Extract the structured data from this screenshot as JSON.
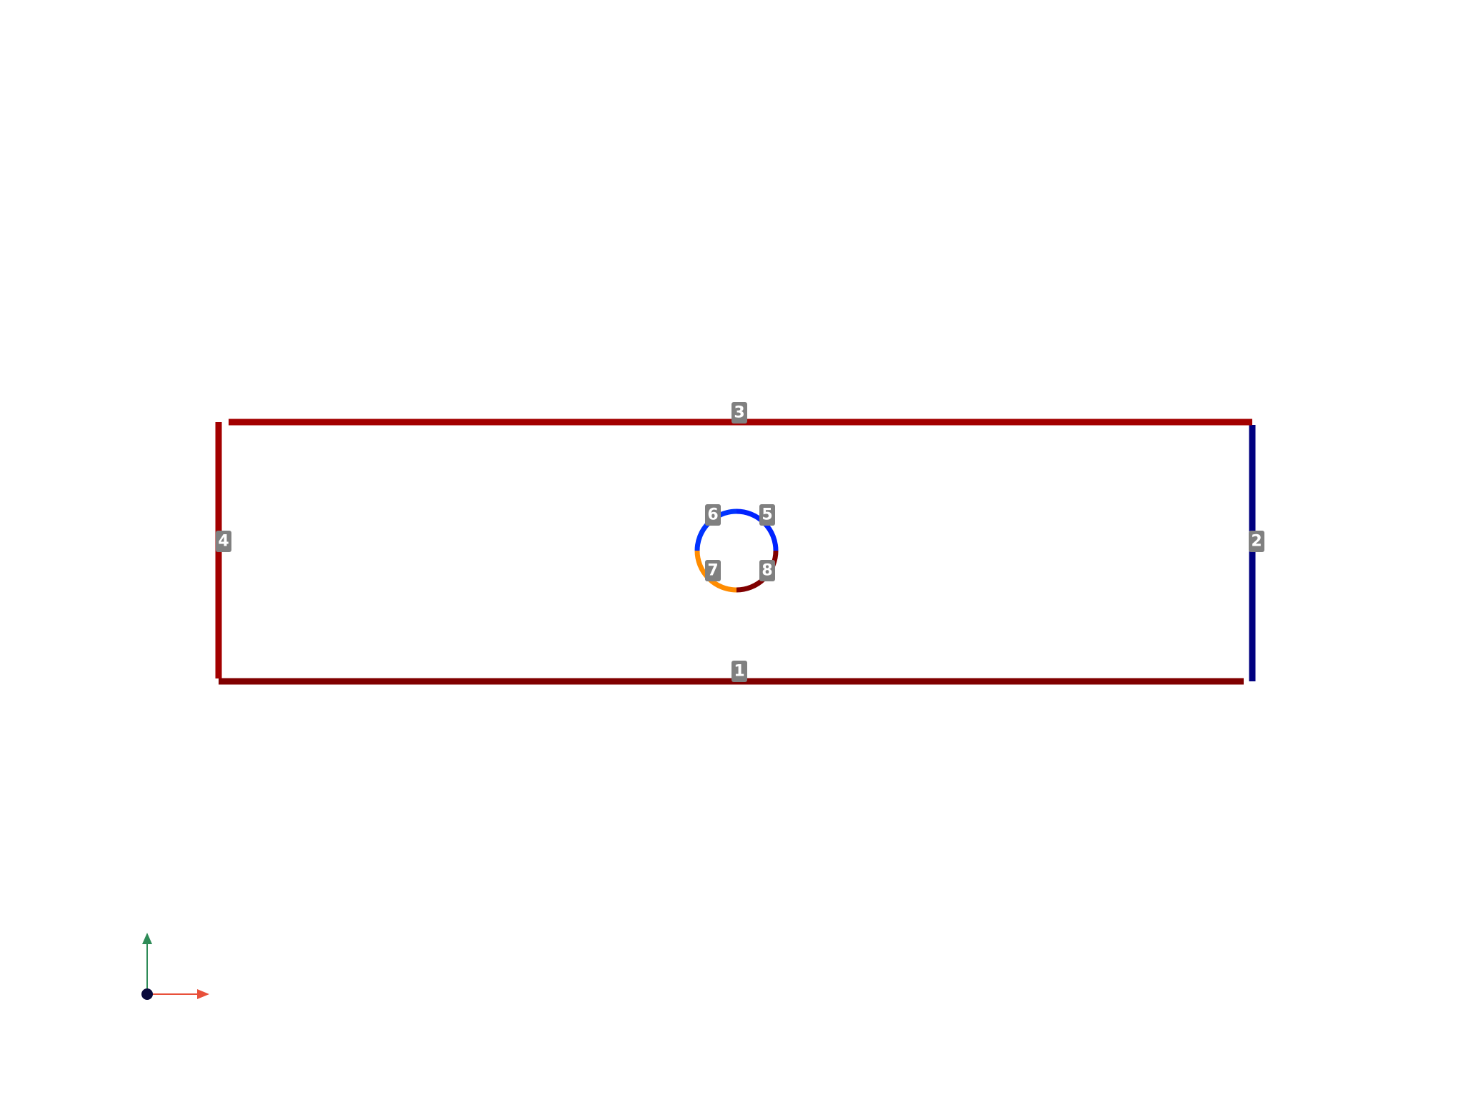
{
  "edges": [
    {
      "id": "1",
      "label": "1",
      "color": "#800000",
      "kind": "line"
    },
    {
      "id": "2",
      "label": "2",
      "color": "#000080",
      "kind": "line"
    },
    {
      "id": "3",
      "label": "3",
      "color": "#a30000",
      "kind": "line"
    },
    {
      "id": "4",
      "label": "4",
      "color": "#a30000",
      "kind": "line"
    },
    {
      "id": "5",
      "label": "5",
      "color": "#0022ff",
      "kind": "arc"
    },
    {
      "id": "6",
      "label": "6",
      "color": "#0033ff",
      "kind": "arc"
    },
    {
      "id": "7",
      "label": "7",
      "color": "#ff8c00",
      "kind": "arc"
    },
    {
      "id": "8",
      "label": "8",
      "color": "#800000",
      "kind": "arc"
    }
  ],
  "axes_triad": {
    "x_axis_color": "#e8503a",
    "y_axis_color": "#2e8b57",
    "origin_color": "#0a0a3c",
    "icon": "axes-triad-icon"
  }
}
